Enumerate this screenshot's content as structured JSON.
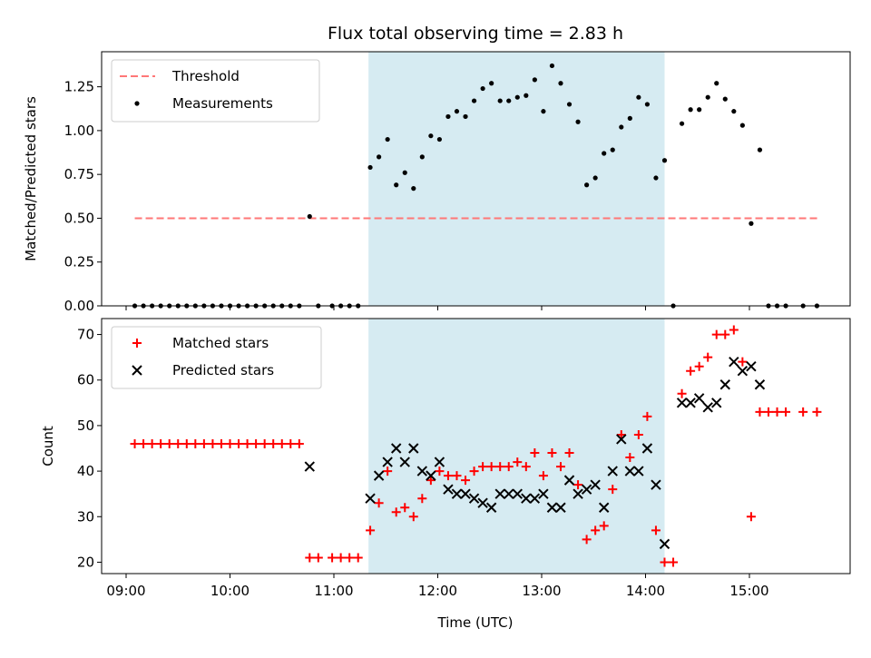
{
  "chart_data": [
    {
      "type": "scatter",
      "title": "Flux total observing time = 2.83 h",
      "xlabel": "",
      "ylabel": "Matched/Predicted stars",
      "ylim": [
        0,
        1.45
      ],
      "yticks": [
        "0.00",
        "0.25",
        "0.50",
        "0.75",
        "1.00",
        "1.25"
      ],
      "legend_position": "upper-left",
      "shaded_interval": {
        "start": "11:20",
        "end": "14:11",
        "color": "#add8e6"
      },
      "threshold": {
        "name": "Threshold",
        "value": 0.5,
        "x_start": "09:05",
        "x_end": "15:40",
        "color": "#ff7777",
        "style": "dashed"
      },
      "series": [
        {
          "name": "Measurements",
          "color": "#000000",
          "marker": "dot",
          "points": [
            [
              "09:05",
              0
            ],
            [
              "09:10",
              0
            ],
            [
              "09:15",
              0
            ],
            [
              "09:20",
              0
            ],
            [
              "09:25",
              0
            ],
            [
              "09:30",
              0
            ],
            [
              "09:35",
              0
            ],
            [
              "09:40",
              0
            ],
            [
              "09:45",
              0
            ],
            [
              "09:50",
              0
            ],
            [
              "09:55",
              0
            ],
            [
              "10:00",
              0
            ],
            [
              "10:05",
              0
            ],
            [
              "10:10",
              0
            ],
            [
              "10:15",
              0
            ],
            [
              "10:20",
              0
            ],
            [
              "10:25",
              0
            ],
            [
              "10:30",
              0
            ],
            [
              "10:35",
              0
            ],
            [
              "10:40",
              0
            ],
            [
              "10:46",
              0.51
            ],
            [
              "10:51",
              0
            ],
            [
              "10:59",
              0
            ],
            [
              "11:04",
              0
            ],
            [
              "11:09",
              0
            ],
            [
              "11:14",
              0
            ],
            [
              "11:21",
              0.79
            ],
            [
              "11:26",
              0.85
            ],
            [
              "11:31",
              0.95
            ],
            [
              "11:36",
              0.69
            ],
            [
              "11:41",
              0.76
            ],
            [
              "11:46",
              0.67
            ],
            [
              "11:51",
              0.85
            ],
            [
              "11:56",
              0.97
            ],
            [
              "12:01",
              0.95
            ],
            [
              "12:06",
              1.08
            ],
            [
              "12:11",
              1.11
            ],
            [
              "12:16",
              1.08
            ],
            [
              "12:21",
              1.17
            ],
            [
              "12:26",
              1.24
            ],
            [
              "12:31",
              1.27
            ],
            [
              "12:36",
              1.17
            ],
            [
              "12:41",
              1.17
            ],
            [
              "12:46",
              1.19
            ],
            [
              "12:51",
              1.2
            ],
            [
              "12:56",
              1.29
            ],
            [
              "13:01",
              1.11
            ],
            [
              "13:06",
              1.37
            ],
            [
              "13:11",
              1.27
            ],
            [
              "13:16",
              1.15
            ],
            [
              "13:21",
              1.05
            ],
            [
              "13:26",
              0.69
            ],
            [
              "13:31",
              0.73
            ],
            [
              "13:36",
              0.87
            ],
            [
              "13:41",
              0.89
            ],
            [
              "13:46",
              1.02
            ],
            [
              "13:51",
              1.07
            ],
            [
              "13:56",
              1.19
            ],
            [
              "14:01",
              1.15
            ],
            [
              "14:06",
              0.73
            ],
            [
              "14:11",
              0.83
            ],
            [
              "14:16",
              0
            ],
            [
              "14:21",
              1.04
            ],
            [
              "14:26",
              1.12
            ],
            [
              "14:31",
              1.12
            ],
            [
              "14:36",
              1.19
            ],
            [
              "14:41",
              1.27
            ],
            [
              "14:46",
              1.18
            ],
            [
              "14:51",
              1.11
            ],
            [
              "14:56",
              1.03
            ],
            [
              "15:01",
              0.47
            ],
            [
              "15:06",
              0.89
            ],
            [
              "15:11",
              0
            ],
            [
              "15:16",
              0
            ],
            [
              "15:21",
              0
            ],
            [
              "15:31",
              0
            ],
            [
              "15:39",
              0
            ]
          ]
        }
      ],
      "x_ticks": [
        "09:00",
        "10:00",
        "11:00",
        "12:00",
        "13:00",
        "14:00",
        "15:00"
      ]
    },
    {
      "type": "scatter",
      "title": "",
      "xlabel": "Time (UTC)",
      "ylabel": "Count",
      "ylim": [
        17.5,
        73.5
      ],
      "yticks": [
        "20",
        "30",
        "40",
        "50",
        "60",
        "70"
      ],
      "legend_position": "upper-left",
      "x_ticks": [
        "09:00",
        "10:00",
        "11:00",
        "12:00",
        "13:00",
        "14:00",
        "15:00"
      ],
      "series": [
        {
          "name": "Matched stars",
          "color": "#ff0000",
          "marker": "plus",
          "points": [
            [
              "09:05",
              46
            ],
            [
              "09:10",
              46
            ],
            [
              "09:15",
              46
            ],
            [
              "09:20",
              46
            ],
            [
              "09:25",
              46
            ],
            [
              "09:30",
              46
            ],
            [
              "09:35",
              46
            ],
            [
              "09:40",
              46
            ],
            [
              "09:45",
              46
            ],
            [
              "09:50",
              46
            ],
            [
              "09:55",
              46
            ],
            [
              "10:00",
              46
            ],
            [
              "10:05",
              46
            ],
            [
              "10:10",
              46
            ],
            [
              "10:15",
              46
            ],
            [
              "10:20",
              46
            ],
            [
              "10:25",
              46
            ],
            [
              "10:30",
              46
            ],
            [
              "10:35",
              46
            ],
            [
              "10:40",
              46
            ],
            [
              "10:46",
              21
            ],
            [
              "10:51",
              21
            ],
            [
              "10:59",
              21
            ],
            [
              "11:04",
              21
            ],
            [
              "11:09",
              21
            ],
            [
              "11:14",
              21
            ],
            [
              "11:21",
              27
            ],
            [
              "11:26",
              33
            ],
            [
              "11:31",
              40
            ],
            [
              "11:36",
              31
            ],
            [
              "11:41",
              32
            ],
            [
              "11:46",
              30
            ],
            [
              "11:51",
              34
            ],
            [
              "11:56",
              38
            ],
            [
              "12:01",
              40
            ],
            [
              "12:06",
              39
            ],
            [
              "12:11",
              39
            ],
            [
              "12:16",
              38
            ],
            [
              "12:21",
              40
            ],
            [
              "12:26",
              41
            ],
            [
              "12:31",
              41
            ],
            [
              "12:36",
              41
            ],
            [
              "12:41",
              41
            ],
            [
              "12:46",
              42
            ],
            [
              "12:51",
              41
            ],
            [
              "12:56",
              44
            ],
            [
              "13:01",
              39
            ],
            [
              "13:06",
              44
            ],
            [
              "13:11",
              41
            ],
            [
              "13:16",
              44
            ],
            [
              "13:21",
              37
            ],
            [
              "13:26",
              25
            ],
            [
              "13:31",
              27
            ],
            [
              "13:36",
              28
            ],
            [
              "13:41",
              36
            ],
            [
              "13:46",
              48
            ],
            [
              "13:51",
              43
            ],
            [
              "13:56",
              48
            ],
            [
              "14:01",
              52
            ],
            [
              "14:06",
              27
            ],
            [
              "14:11",
              20
            ],
            [
              "14:16",
              20
            ],
            [
              "14:21",
              57
            ],
            [
              "14:26",
              62
            ],
            [
              "14:31",
              63
            ],
            [
              "14:36",
              65
            ],
            [
              "14:41",
              70
            ],
            [
              "14:46",
              70
            ],
            [
              "14:51",
              71
            ],
            [
              "14:56",
              64
            ],
            [
              "15:01",
              30
            ],
            [
              "15:06",
              53
            ],
            [
              "15:11",
              53
            ],
            [
              "15:16",
              53
            ],
            [
              "15:21",
              53
            ],
            [
              "15:31",
              53
            ],
            [
              "15:39",
              53
            ]
          ]
        },
        {
          "name": "Predicted stars",
          "color": "#000000",
          "marker": "x",
          "points": [
            [
              "10:46",
              41
            ],
            [
              "11:21",
              34
            ],
            [
              "11:26",
              39
            ],
            [
              "11:31",
              42
            ],
            [
              "11:36",
              45
            ],
            [
              "11:41",
              42
            ],
            [
              "11:46",
              45
            ],
            [
              "11:51",
              40
            ],
            [
              "11:56",
              39
            ],
            [
              "12:01",
              42
            ],
            [
              "12:06",
              36
            ],
            [
              "12:11",
              35
            ],
            [
              "12:16",
              35
            ],
            [
              "12:21",
              34
            ],
            [
              "12:26",
              33
            ],
            [
              "12:31",
              32
            ],
            [
              "12:36",
              35
            ],
            [
              "12:41",
              35
            ],
            [
              "12:46",
              35
            ],
            [
              "12:51",
              34
            ],
            [
              "12:56",
              34
            ],
            [
              "13:01",
              35
            ],
            [
              "13:06",
              32
            ],
            [
              "13:11",
              32
            ],
            [
              "13:16",
              38
            ],
            [
              "13:21",
              35
            ],
            [
              "13:26",
              36
            ],
            [
              "13:31",
              37
            ],
            [
              "13:36",
              32
            ],
            [
              "13:41",
              40
            ],
            [
              "13:46",
              47
            ],
            [
              "13:51",
              40
            ],
            [
              "13:56",
              40
            ],
            [
              "14:01",
              45
            ],
            [
              "14:06",
              37
            ],
            [
              "14:11",
              24
            ],
            [
              "14:21",
              55
            ],
            [
              "14:26",
              55
            ],
            [
              "14:31",
              56
            ],
            [
              "14:36",
              54
            ],
            [
              "14:41",
              55
            ],
            [
              "14:46",
              59
            ],
            [
              "14:51",
              64
            ],
            [
              "14:56",
              62
            ],
            [
              "15:01",
              63
            ],
            [
              "15:06",
              59
            ]
          ]
        }
      ]
    }
  ]
}
